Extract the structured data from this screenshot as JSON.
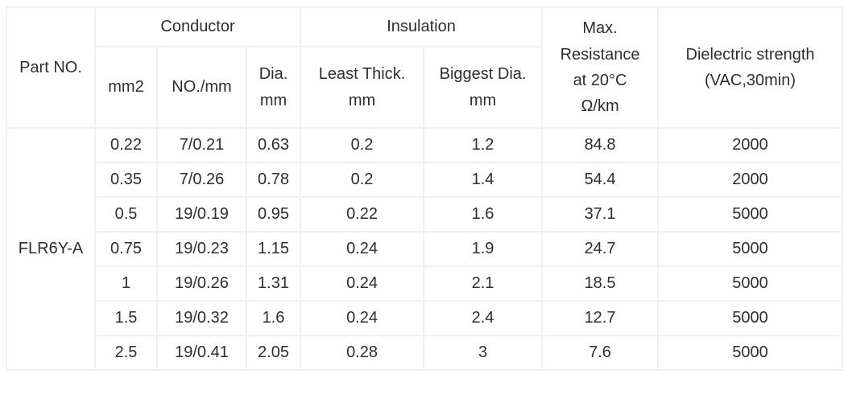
{
  "colors": {
    "background": "#ffffff",
    "border": "#f0f0f0",
    "text": "#2b2e33"
  },
  "table": {
    "headers": {
      "part_no": "Part NO.",
      "conductor_group": "Conductor",
      "insulation_group": "Insulation",
      "mm2": "mm2",
      "no_per_mm": "NO./mm",
      "dia_mm": "Dia.\nmm",
      "least_thick_mm": "Least Thick.\nmm",
      "biggest_dia_mm": "Biggest Dia.\nmm",
      "max_resistance": "Max.\nResistance\nat 20°C\nΩ/km",
      "dielectric_strength": "Dielectric strength\n(VAC,30min)"
    },
    "part_no_value": "FLR6Y-A",
    "rows": [
      {
        "mm2": "0.22",
        "no_per_mm": "7/0.21",
        "dia_mm": "0.63",
        "least_thick_mm": "0.2",
        "biggest_dia_mm": "1.2",
        "max_resistance": "84.8",
        "dielectric_strength": "2000"
      },
      {
        "mm2": "0.35",
        "no_per_mm": "7/0.26",
        "dia_mm": "0.78",
        "least_thick_mm": "0.2",
        "biggest_dia_mm": "1.4",
        "max_resistance": "54.4",
        "dielectric_strength": "2000"
      },
      {
        "mm2": "0.5",
        "no_per_mm": "19/0.19",
        "dia_mm": "0.95",
        "least_thick_mm": "0.22",
        "biggest_dia_mm": "1.6",
        "max_resistance": "37.1",
        "dielectric_strength": "5000"
      },
      {
        "mm2": "0.75",
        "no_per_mm": "19/0.23",
        "dia_mm": "1.15",
        "least_thick_mm": "0.24",
        "biggest_dia_mm": "1.9",
        "max_resistance": "24.7",
        "dielectric_strength": "5000"
      },
      {
        "mm2": "1",
        "no_per_mm": "19/0.26",
        "dia_mm": "1.31",
        "least_thick_mm": "0.24",
        "biggest_dia_mm": "2.1",
        "max_resistance": "18.5",
        "dielectric_strength": "5000"
      },
      {
        "mm2": "1.5",
        "no_per_mm": "19/0.32",
        "dia_mm": "1.6",
        "least_thick_mm": "0.24",
        "biggest_dia_mm": "2.4",
        "max_resistance": "12.7",
        "dielectric_strength": "5000"
      },
      {
        "mm2": "2.5",
        "no_per_mm": "19/0.41",
        "dia_mm": "2.05",
        "least_thick_mm": "0.28",
        "biggest_dia_mm": "3",
        "max_resistance": "7.6",
        "dielectric_strength": "5000"
      }
    ]
  }
}
